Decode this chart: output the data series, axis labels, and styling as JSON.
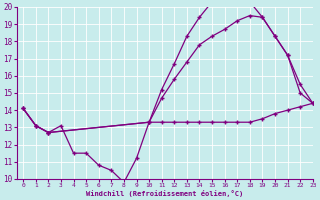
{
  "xlabel": "Windchill (Refroidissement éolien,°C)",
  "xlim": [
    -0.5,
    23
  ],
  "ylim": [
    10,
    20
  ],
  "xticks": [
    0,
    1,
    2,
    3,
    4,
    5,
    6,
    7,
    8,
    9,
    10,
    11,
    12,
    13,
    14,
    15,
    16,
    17,
    18,
    19,
    20,
    21,
    22,
    23
  ],
  "yticks": [
    10,
    11,
    12,
    13,
    14,
    15,
    16,
    17,
    18,
    19,
    20
  ],
  "background_color": "#c8ecec",
  "grid_color": "#a0d8d8",
  "line_color": "#800080",
  "line1_x": [
    0,
    1,
    2,
    3,
    4,
    5,
    6,
    7,
    8,
    9,
    10,
    11,
    12,
    13,
    14,
    15,
    16,
    17,
    18,
    19,
    20,
    21,
    22,
    23
  ],
  "line1_y": [
    14.1,
    13.1,
    12.7,
    13.1,
    11.5,
    11.5,
    10.8,
    10.5,
    9.8,
    11.2,
    13.3,
    13.3,
    13.3,
    13.3,
    13.3,
    13.3,
    13.3,
    13.3,
    13.3,
    13.5,
    13.8,
    14.0,
    14.2,
    14.4
  ],
  "line2_x": [
    0,
    1,
    2,
    10,
    11,
    12,
    13,
    14,
    15,
    16,
    17,
    18,
    19,
    20,
    21,
    22,
    23
  ],
  "line2_y": [
    14.1,
    13.1,
    12.7,
    13.3,
    15.2,
    16.7,
    18.3,
    19.4,
    20.3,
    20.3,
    20.3,
    20.3,
    19.4,
    18.3,
    17.2,
    15.0,
    14.4
  ],
  "line3_x": [
    0,
    1,
    2,
    10,
    11,
    12,
    13,
    14,
    15,
    16,
    17,
    18,
    19,
    20,
    21,
    22,
    23
  ],
  "line3_y": [
    14.1,
    13.1,
    12.7,
    13.3,
    14.7,
    15.8,
    16.8,
    17.8,
    18.3,
    18.7,
    19.2,
    19.5,
    19.4,
    18.3,
    17.2,
    15.5,
    14.4
  ],
  "marker": "+",
  "markersize": 3,
  "linewidth": 0.9
}
